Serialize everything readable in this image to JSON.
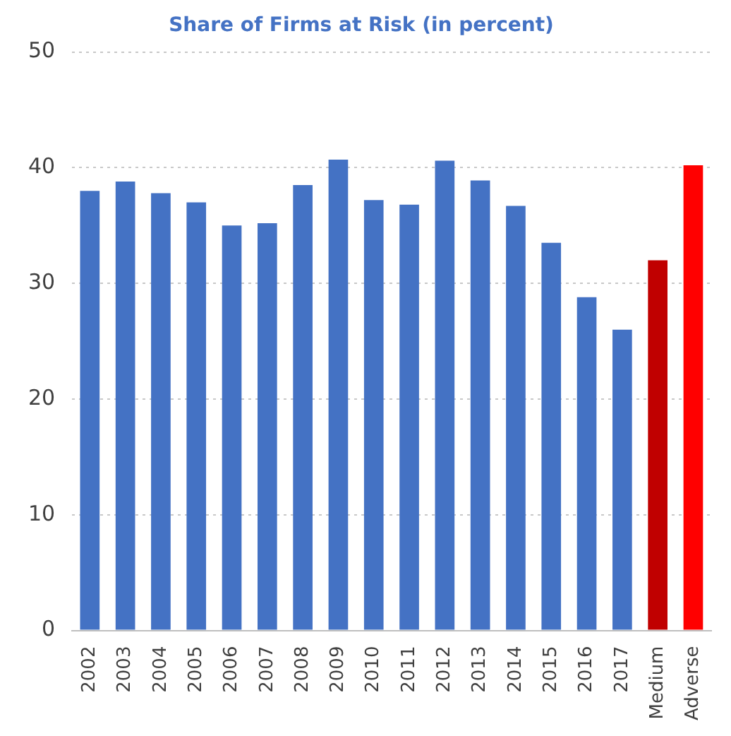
{
  "chart_data": {
    "type": "bar",
    "title": "Share of Firms at Risk (in percent)",
    "categories": [
      "2002",
      "2003",
      "2004",
      "2005",
      "2006",
      "2007",
      "2008",
      "2009",
      "2010",
      "2011",
      "2012",
      "2013",
      "2014",
      "2015",
      "2016",
      "2017",
      "Medium",
      "Adverse"
    ],
    "values": [
      38,
      38.8,
      37.8,
      37,
      35,
      35.2,
      38.5,
      40.7,
      37.2,
      36.8,
      40.6,
      38.9,
      36.7,
      33.5,
      28.8,
      26,
      32,
      40.2
    ],
    "colors": [
      "#4472c4",
      "#4472c4",
      "#4472c4",
      "#4472c4",
      "#4472c4",
      "#4472c4",
      "#4472c4",
      "#4472c4",
      "#4472c4",
      "#4472c4",
      "#4472c4",
      "#4472c4",
      "#4472c4",
      "#4472c4",
      "#4472c4",
      "#4472c4",
      "#c00000",
      "#ff0000"
    ],
    "ylim": [
      0,
      50
    ],
    "yticks": [
      0,
      10,
      20,
      30,
      40,
      50
    ],
    "grid": "y",
    "legend": false
  }
}
